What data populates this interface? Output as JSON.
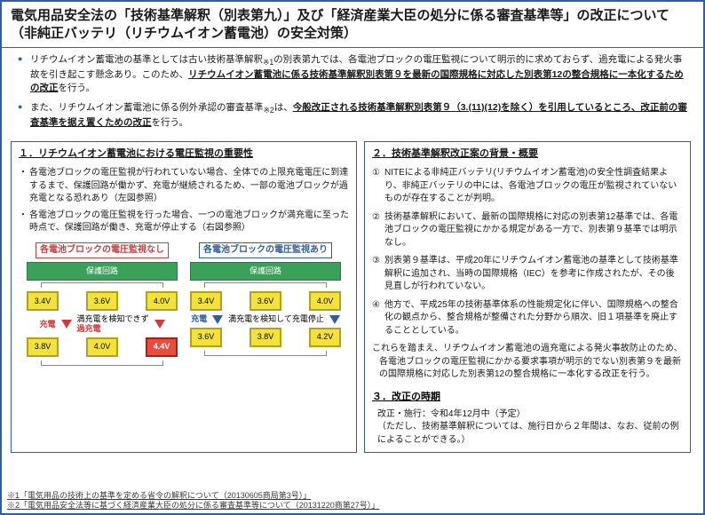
{
  "title": "電気用品安全法の「技術基準解釈（別表第九）」及び「経済産業大臣の処分に係る審査基準等」の改正について（非純正バッテリ（リチウムイオン蓄電池）の安全対策）",
  "intro": {
    "items": [
      {
        "pre": "リチウムイオン蓄電池の基準としては古い技術基準解釈",
        "sub": "※1",
        "mid": "の別表第九では、各電池ブロックの電圧監視について明示的に求めておらず、過充電による発火事故を引き起こす懸念あり。このため、",
        "u": "リチウムイオン蓄電池に係る技術基準解釈別表第９を最新の国際規格に対応した別表第12の整合規格に一本化するための改正",
        "post": "を行う。"
      },
      {
        "pre": "また、リチウムイオン蓄電池に係る例外承認の審査基準",
        "sub": "※2",
        "mid": "は、",
        "u": "今般改正される技術基準解釈別表第９（3.(11)(12)を除く）を引用しているところ、改正前の審査基準を据え置くための改正",
        "post": "を行う。"
      }
    ]
  },
  "left": {
    "title": "１．リチウムイオン蓄電池における電圧監視の重要性",
    "bullets": [
      "各電池ブロックの電圧監視が行われていない場合、全体での上限充電電圧に到達するまで、保護回路が働かず、充電が継続されるため、一部の電池ブロックが過充電となる恐れあり（左図参照）",
      "各電池ブロックの電圧監視を行った場合、一つの電池ブロックが満充電に至った時点で、保護回路が働き、充電が停止する（右図参照）"
    ],
    "diagram": {
      "groupA": {
        "title": "各電池ブロックの電圧監視なし",
        "protect": "保護回路",
        "row1": [
          "3.4V",
          "3.6V",
          "4.0V"
        ],
        "arrow_left": "充電",
        "arrow_note": "満充電を検知できず",
        "arrow_em": "過充電",
        "row2": [
          "3.8V",
          "4.0V",
          "4.4V"
        ]
      },
      "groupB": {
        "title": "各電池ブロックの電圧監視あり",
        "protect": "保護回路",
        "row1": [
          "3.4V",
          "3.6V",
          "4.0V"
        ],
        "arrow_left": "充電",
        "arrow_note": "満充電を検知して充電停止",
        "row2": [
          "3.6V",
          "3.8V",
          "4.2V"
        ]
      }
    }
  },
  "right": {
    "title": "２．技術基準解釈改正案の背景・概要",
    "items": [
      "NITEによる非純正バッテリ(リチウムイオン蓄電池)の安全性調査結果より、非純正バッテリの中には、各電池ブロックの電圧が監視されていないものが存在することが判明。",
      "技術基準解釈において、最新の国際規格に対応の別表第12基準では、各電池ブロックの電圧監視にかかる規定がある一方で、別表第９基準では明示なし。",
      "別表第９基準は、平成20年にリチウムイオン蓄電池の基準として技術基準解釈に追加され、当時の国際規格（IEC）を参考に作成されたが、その後見直しが行われていない。",
      "他方で、平成25年の技術基準体系の性能規定化に伴い、国際規格への整合化の観点から、整合規格が整備された分野から順次、旧１項基準を廃止することとしている。"
    ],
    "conclusion": "これらを踏まえ、リチウムイオン蓄電池の過充電による発火事故防止のため、各電池ブロックの電圧監視にかかる要求事項が明示的でない別表第９を最新の国際規格に対応した別表第12の整合規格に一本化する改正を行う。",
    "timing_title": "３．改正の時期",
    "timing_body": "改正・施行：令和4年12月中（予定）",
    "timing_note": "（ただし、技術基準解釈については、施行日から２年間は、なお、従前の例によることができる。）"
  },
  "footnotes": [
    "※1「電気用品の技術上の基準を定める省令の解釈について（20130605商局第3号）」",
    "※2「電気用品安全法等に基づく経済産業大臣の処分に係る審査基準等について（20131220商第27号）」"
  ],
  "colors": {
    "border": "#2e5fa3",
    "green": "#3aa05a",
    "yellow": "#f2e23a",
    "red": "#e74c3c",
    "red_text": "#d23b3b",
    "blue_text": "#2e5fa3"
  }
}
